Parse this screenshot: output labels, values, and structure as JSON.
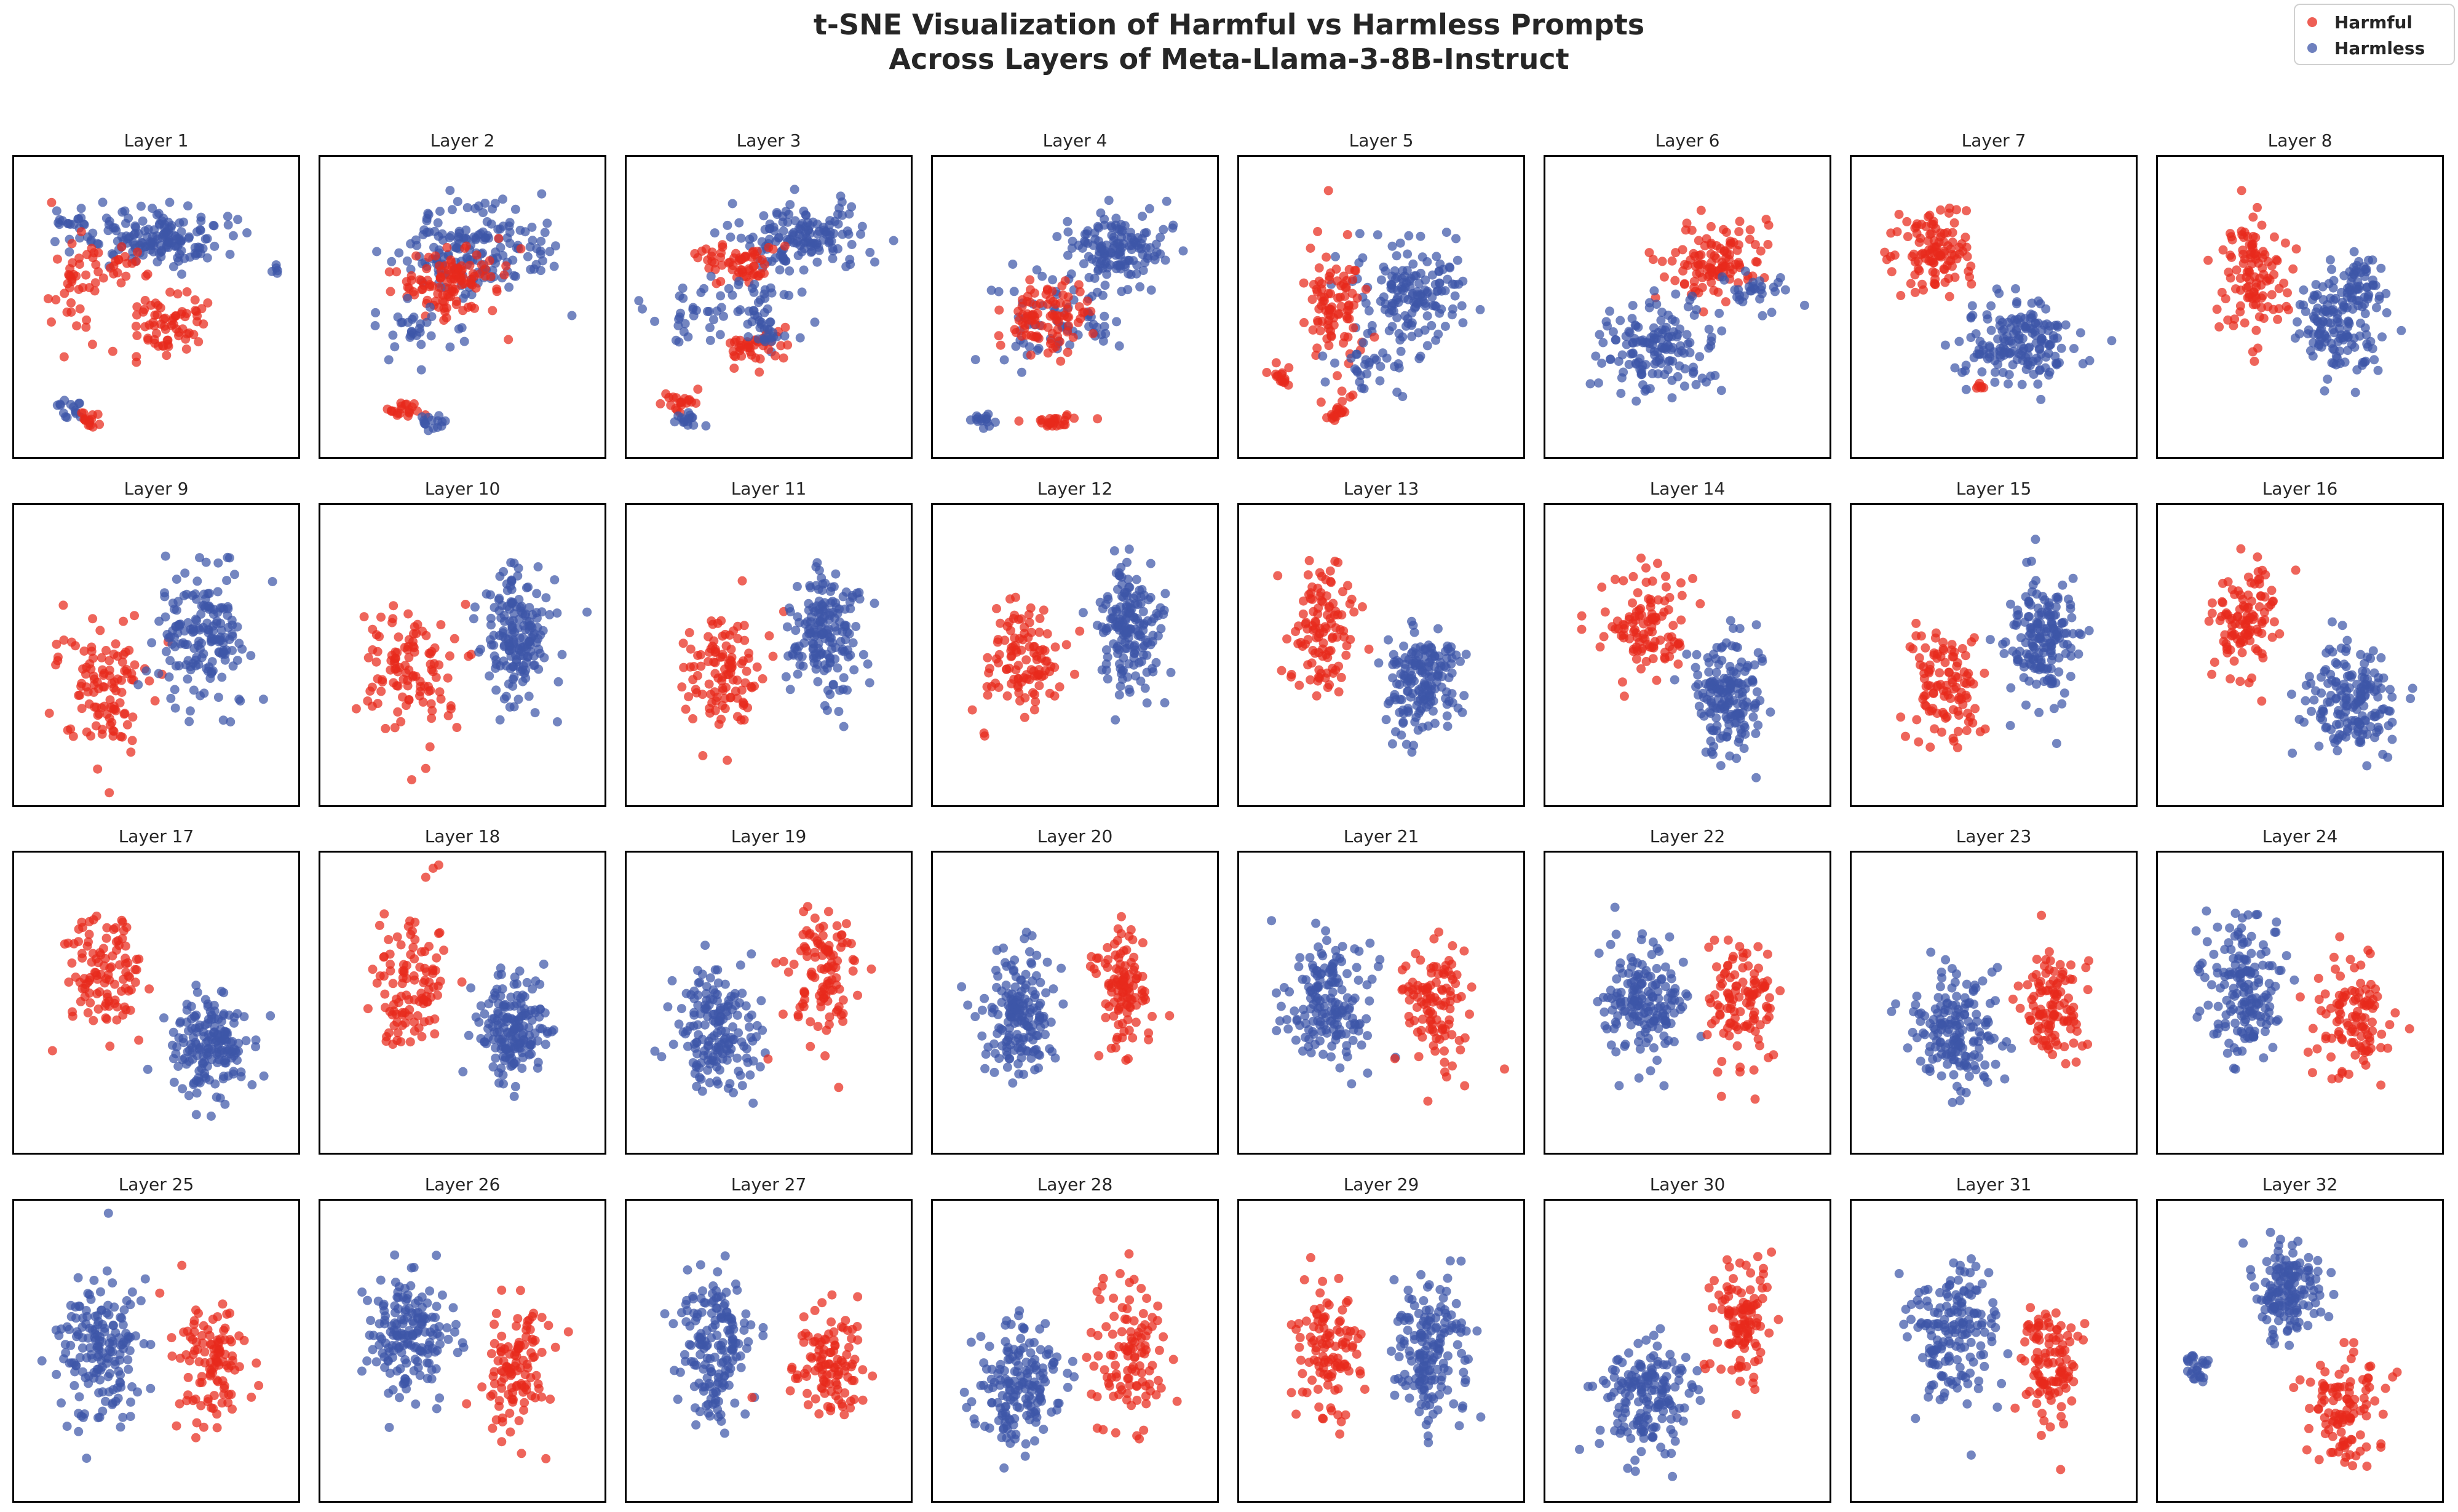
{
  "figure": {
    "title_line1": "t-SNE Visualization of Harmful vs Harmless Prompts",
    "title_line2": "Across Layers of Meta-Llama-3-8B-Instruct"
  },
  "legend": {
    "items": [
      {
        "label": "Harmful",
        "color": "#e8291c",
        "icon": "circle-marker-icon"
      },
      {
        "label": "Harmless",
        "color": "#3d56a8",
        "icon": "circle-marker-icon"
      }
    ]
  },
  "chart_data": {
    "type": "scatter",
    "title": "t-SNE Visualization of Harmful vs Harmless Prompts Across Layers of Meta-Llama-3-8B-Instruct",
    "series": [
      {
        "name": "Harmful",
        "color": "#e8291c"
      },
      {
        "name": "Harmless",
        "color": "#3d56a8"
      }
    ],
    "xlabel": "",
    "ylabel": "",
    "axes_ticks": "none",
    "grid": false,
    "legend_position": "top-right",
    "panels": [
      {
        "title": "Layer 1",
        "clusters": [
          {
            "series": "Harmless",
            "cx": 0.52,
            "cy": 0.25,
            "sx": 0.22,
            "sy": 0.1,
            "n": 150
          },
          {
            "series": "Harmless",
            "cx": 0.18,
            "cy": 0.22,
            "sx": 0.07,
            "sy": 0.06,
            "n": 20
          },
          {
            "series": "Harmful",
            "cx": 0.55,
            "cy": 0.55,
            "sx": 0.13,
            "sy": 0.1,
            "n": 70
          },
          {
            "series": "Harmful",
            "cx": 0.2,
            "cy": 0.4,
            "sx": 0.08,
            "sy": 0.16,
            "n": 40
          },
          {
            "series": "Harmful",
            "cx": 0.38,
            "cy": 0.35,
            "sx": 0.08,
            "sy": 0.06,
            "n": 20
          },
          {
            "series": "Harmless",
            "cx": 0.16,
            "cy": 0.85,
            "sx": 0.05,
            "sy": 0.03,
            "n": 15
          },
          {
            "series": "Harmful",
            "cx": 0.25,
            "cy": 0.9,
            "sx": 0.04,
            "sy": 0.04,
            "n": 15
          },
          {
            "series": "Harmless",
            "cx": 0.94,
            "cy": 0.37,
            "sx": 0.015,
            "sy": 0.015,
            "n": 5
          }
        ]
      },
      {
        "title": "Layer 2",
        "clusters": [
          {
            "series": "Harmless",
            "cx": 0.55,
            "cy": 0.3,
            "sx": 0.26,
            "sy": 0.15,
            "n": 170
          },
          {
            "series": "Harmful",
            "cx": 0.45,
            "cy": 0.42,
            "sx": 0.18,
            "sy": 0.12,
            "n": 110
          },
          {
            "series": "Harmless",
            "cx": 0.3,
            "cy": 0.58,
            "sx": 0.12,
            "sy": 0.08,
            "n": 30
          },
          {
            "series": "Harmful",
            "cx": 0.28,
            "cy": 0.86,
            "sx": 0.07,
            "sy": 0.02,
            "n": 20
          },
          {
            "series": "Harmless",
            "cx": 0.38,
            "cy": 0.9,
            "sx": 0.05,
            "sy": 0.025,
            "n": 15
          }
        ]
      },
      {
        "title": "Layer 3",
        "clusters": [
          {
            "series": "Harmless",
            "cx": 0.62,
            "cy": 0.25,
            "sx": 0.2,
            "sy": 0.1,
            "n": 140
          },
          {
            "series": "Harmful",
            "cx": 0.4,
            "cy": 0.35,
            "sx": 0.12,
            "sy": 0.07,
            "n": 60
          },
          {
            "series": "Harmless",
            "cx": 0.4,
            "cy": 0.52,
            "sx": 0.25,
            "sy": 0.12,
            "n": 70
          },
          {
            "series": "Harmful",
            "cx": 0.45,
            "cy": 0.65,
            "sx": 0.1,
            "sy": 0.05,
            "n": 40
          },
          {
            "series": "Harmless",
            "cx": 0.5,
            "cy": 0.6,
            "sx": 0.08,
            "sy": 0.04,
            "n": 15
          },
          {
            "series": "Harmful",
            "cx": 0.18,
            "cy": 0.83,
            "sx": 0.06,
            "sy": 0.04,
            "n": 20
          },
          {
            "series": "Harmless",
            "cx": 0.2,
            "cy": 0.9,
            "sx": 0.04,
            "sy": 0.03,
            "n": 15
          }
        ]
      },
      {
        "title": "Layer 4",
        "clusters": [
          {
            "series": "Harmless",
            "cx": 0.65,
            "cy": 0.3,
            "sx": 0.16,
            "sy": 0.12,
            "n": 140
          },
          {
            "series": "Harmless",
            "cx": 0.42,
            "cy": 0.55,
            "sx": 0.22,
            "sy": 0.15,
            "n": 70
          },
          {
            "series": "Harmful",
            "cx": 0.4,
            "cy": 0.55,
            "sx": 0.14,
            "sy": 0.12,
            "n": 90
          },
          {
            "series": "Harmful",
            "cx": 0.4,
            "cy": 0.9,
            "sx": 0.1,
            "sy": 0.02,
            "n": 25
          },
          {
            "series": "Harmless",
            "cx": 0.16,
            "cy": 0.9,
            "sx": 0.04,
            "sy": 0.03,
            "n": 15
          }
        ]
      },
      {
        "title": "Layer 5",
        "clusters": [
          {
            "series": "Harmless",
            "cx": 0.62,
            "cy": 0.45,
            "sx": 0.18,
            "sy": 0.2,
            "n": 150
          },
          {
            "series": "Harmful",
            "cx": 0.32,
            "cy": 0.5,
            "sx": 0.1,
            "sy": 0.18,
            "n": 90
          },
          {
            "series": "Harmful",
            "cx": 0.12,
            "cy": 0.75,
            "sx": 0.04,
            "sy": 0.05,
            "n": 15
          },
          {
            "series": "Harmful",
            "cx": 0.35,
            "cy": 0.85,
            "sx": 0.06,
            "sy": 0.05,
            "n": 20
          },
          {
            "series": "Harmless",
            "cx": 0.45,
            "cy": 0.7,
            "sx": 0.15,
            "sy": 0.1,
            "n": 30
          }
        ]
      },
      {
        "title": "Layer 6",
        "clusters": [
          {
            "series": "Harmful",
            "cx": 0.62,
            "cy": 0.35,
            "sx": 0.16,
            "sy": 0.12,
            "n": 110
          },
          {
            "series": "Harmless",
            "cx": 0.38,
            "cy": 0.65,
            "sx": 0.18,
            "sy": 0.14,
            "n": 150
          },
          {
            "series": "Harmless",
            "cx": 0.75,
            "cy": 0.45,
            "sx": 0.1,
            "sy": 0.08,
            "n": 30
          }
        ]
      },
      {
        "title": "Layer 7",
        "clusters": [
          {
            "series": "Harmful",
            "cx": 0.28,
            "cy": 0.3,
            "sx": 0.13,
            "sy": 0.13,
            "n": 110
          },
          {
            "series": "Harmless",
            "cx": 0.6,
            "cy": 0.62,
            "sx": 0.2,
            "sy": 0.13,
            "n": 170
          },
          {
            "series": "Harmful",
            "cx": 0.45,
            "cy": 0.78,
            "sx": 0.02,
            "sy": 0.03,
            "n": 6
          }
        ]
      },
      {
        "title": "Layer 8",
        "clusters": [
          {
            "series": "Harmful",
            "cx": 0.33,
            "cy": 0.4,
            "sx": 0.13,
            "sy": 0.18,
            "n": 110
          },
          {
            "series": "Harmless",
            "cx": 0.65,
            "cy": 0.55,
            "sx": 0.14,
            "sy": 0.17,
            "n": 150
          },
          {
            "series": "Harmless",
            "cx": 0.72,
            "cy": 0.4,
            "sx": 0.1,
            "sy": 0.08,
            "n": 30
          }
        ]
      },
      {
        "title": "Layer 9",
        "clusters": [
          {
            "series": "Harmful",
            "cx": 0.3,
            "cy": 0.6,
            "sx": 0.16,
            "sy": 0.2,
            "n": 110
          },
          {
            "series": "Harmless",
            "cx": 0.67,
            "cy": 0.45,
            "sx": 0.14,
            "sy": 0.2,
            "n": 170
          }
        ]
      },
      {
        "title": "Layer 10",
        "clusters": [
          {
            "series": "Harmful",
            "cx": 0.3,
            "cy": 0.55,
            "sx": 0.15,
            "sy": 0.22,
            "n": 110
          },
          {
            "series": "Harmless",
            "cx": 0.7,
            "cy": 0.42,
            "sx": 0.12,
            "sy": 0.2,
            "n": 170
          }
        ]
      },
      {
        "title": "Layer 11",
        "clusters": [
          {
            "series": "Harmful",
            "cx": 0.33,
            "cy": 0.55,
            "sx": 0.12,
            "sy": 0.2,
            "n": 110
          },
          {
            "series": "Harmless",
            "cx": 0.72,
            "cy": 0.42,
            "sx": 0.12,
            "sy": 0.2,
            "n": 170
          }
        ]
      },
      {
        "title": "Layer 12",
        "clusters": [
          {
            "series": "Harmful",
            "cx": 0.3,
            "cy": 0.55,
            "sx": 0.14,
            "sy": 0.2,
            "n": 110
          },
          {
            "series": "Harmless",
            "cx": 0.7,
            "cy": 0.4,
            "sx": 0.1,
            "sy": 0.2,
            "n": 170
          }
        ]
      },
      {
        "title": "Layer 13",
        "clusters": [
          {
            "series": "Harmful",
            "cx": 0.3,
            "cy": 0.4,
            "sx": 0.12,
            "sy": 0.2,
            "n": 110
          },
          {
            "series": "Harmless",
            "cx": 0.65,
            "cy": 0.6,
            "sx": 0.12,
            "sy": 0.18,
            "n": 170
          }
        ]
      },
      {
        "title": "Layer 14",
        "clusters": [
          {
            "series": "Harmful",
            "cx": 0.35,
            "cy": 0.4,
            "sx": 0.14,
            "sy": 0.18,
            "n": 110
          },
          {
            "series": "Harmless",
            "cx": 0.65,
            "cy": 0.65,
            "sx": 0.12,
            "sy": 0.18,
            "n": 170
          }
        ]
      },
      {
        "title": "Layer 15",
        "clusters": [
          {
            "series": "Harmful",
            "cx": 0.32,
            "cy": 0.6,
            "sx": 0.12,
            "sy": 0.2,
            "n": 110
          },
          {
            "series": "Harmless",
            "cx": 0.68,
            "cy": 0.45,
            "sx": 0.12,
            "sy": 0.18,
            "n": 170
          }
        ]
      },
      {
        "title": "Layer 16",
        "clusters": [
          {
            "series": "Harmful",
            "cx": 0.3,
            "cy": 0.38,
            "sx": 0.12,
            "sy": 0.18,
            "n": 110
          },
          {
            "series": "Harmless",
            "cx": 0.68,
            "cy": 0.65,
            "sx": 0.14,
            "sy": 0.16,
            "n": 170
          }
        ]
      },
      {
        "title": "Layer 17",
        "clusters": [
          {
            "series": "Harmful",
            "cx": 0.3,
            "cy": 0.4,
            "sx": 0.14,
            "sy": 0.2,
            "n": 110
          },
          {
            "series": "Harmless",
            "cx": 0.7,
            "cy": 0.65,
            "sx": 0.14,
            "sy": 0.16,
            "n": 170
          }
        ]
      },
      {
        "title": "Layer 18",
        "clusters": [
          {
            "series": "Harmful",
            "cx": 0.32,
            "cy": 0.45,
            "sx": 0.12,
            "sy": 0.22,
            "n": 110
          },
          {
            "series": "Harmless",
            "cx": 0.68,
            "cy": 0.6,
            "sx": 0.12,
            "sy": 0.18,
            "n": 170
          }
        ]
      },
      {
        "title": "Layer 19",
        "clusters": [
          {
            "series": "Harmless",
            "cx": 0.3,
            "cy": 0.6,
            "sx": 0.14,
            "sy": 0.2,
            "n": 170
          },
          {
            "series": "Harmful",
            "cx": 0.7,
            "cy": 0.4,
            "sx": 0.12,
            "sy": 0.2,
            "n": 110
          }
        ]
      },
      {
        "title": "Layer 20",
        "clusters": [
          {
            "series": "Harmless",
            "cx": 0.3,
            "cy": 0.55,
            "sx": 0.12,
            "sy": 0.2,
            "n": 170
          },
          {
            "series": "Harmful",
            "cx": 0.68,
            "cy": 0.45,
            "sx": 0.1,
            "sy": 0.22,
            "n": 110
          }
        ]
      },
      {
        "title": "Layer 21",
        "clusters": [
          {
            "series": "Harmless",
            "cx": 0.3,
            "cy": 0.5,
            "sx": 0.14,
            "sy": 0.2,
            "n": 170
          },
          {
            "series": "Harmful",
            "cx": 0.68,
            "cy": 0.5,
            "sx": 0.13,
            "sy": 0.2,
            "n": 110
          }
        ]
      },
      {
        "title": "Layer 22",
        "clusters": [
          {
            "series": "Harmless",
            "cx": 0.32,
            "cy": 0.5,
            "sx": 0.14,
            "sy": 0.18,
            "n": 170
          },
          {
            "series": "Harmful",
            "cx": 0.7,
            "cy": 0.5,
            "sx": 0.12,
            "sy": 0.2,
            "n": 110
          }
        ]
      },
      {
        "title": "Layer 23",
        "clusters": [
          {
            "series": "Harmless",
            "cx": 0.35,
            "cy": 0.6,
            "sx": 0.14,
            "sy": 0.18,
            "n": 170
          },
          {
            "series": "Harmful",
            "cx": 0.72,
            "cy": 0.5,
            "sx": 0.1,
            "sy": 0.18,
            "n": 110
          }
        ]
      },
      {
        "title": "Layer 24",
        "clusters": [
          {
            "series": "Harmless",
            "cx": 0.3,
            "cy": 0.45,
            "sx": 0.12,
            "sy": 0.22,
            "n": 170
          },
          {
            "series": "Harmful",
            "cx": 0.7,
            "cy": 0.55,
            "sx": 0.12,
            "sy": 0.2,
            "n": 110
          }
        ]
      },
      {
        "title": "Layer 25",
        "clusters": [
          {
            "series": "Harmless",
            "cx": 0.28,
            "cy": 0.5,
            "sx": 0.13,
            "sy": 0.22,
            "n": 170
          },
          {
            "series": "Harmful",
            "cx": 0.7,
            "cy": 0.55,
            "sx": 0.12,
            "sy": 0.18,
            "n": 110
          }
        ]
      },
      {
        "title": "Layer 26",
        "clusters": [
          {
            "series": "Harmless",
            "cx": 0.3,
            "cy": 0.45,
            "sx": 0.14,
            "sy": 0.18,
            "n": 170
          },
          {
            "series": "Harmful",
            "cx": 0.7,
            "cy": 0.55,
            "sx": 0.12,
            "sy": 0.22,
            "n": 110
          }
        ]
      },
      {
        "title": "Layer 27",
        "clusters": [
          {
            "series": "Harmless",
            "cx": 0.3,
            "cy": 0.5,
            "sx": 0.12,
            "sy": 0.22,
            "n": 170
          },
          {
            "series": "Harmful",
            "cx": 0.72,
            "cy": 0.55,
            "sx": 0.12,
            "sy": 0.18,
            "n": 110
          }
        ]
      },
      {
        "title": "Layer 28",
        "clusters": [
          {
            "series": "Harmless",
            "cx": 0.3,
            "cy": 0.62,
            "sx": 0.14,
            "sy": 0.2,
            "n": 170
          },
          {
            "series": "Harmful",
            "cx": 0.7,
            "cy": 0.5,
            "sx": 0.12,
            "sy": 0.22,
            "n": 110
          }
        ]
      },
      {
        "title": "Layer 29",
        "clusters": [
          {
            "series": "Harmful",
            "cx": 0.3,
            "cy": 0.5,
            "sx": 0.12,
            "sy": 0.22,
            "n": 110
          },
          {
            "series": "Harmless",
            "cx": 0.68,
            "cy": 0.5,
            "sx": 0.12,
            "sy": 0.22,
            "n": 170
          }
        ]
      },
      {
        "title": "Layer 30",
        "clusters": [
          {
            "series": "Harmless",
            "cx": 0.35,
            "cy": 0.65,
            "sx": 0.16,
            "sy": 0.18,
            "n": 170
          },
          {
            "series": "Harmful",
            "cx": 0.7,
            "cy": 0.4,
            "sx": 0.1,
            "sy": 0.2,
            "n": 110
          }
        ]
      },
      {
        "title": "Layer 31",
        "clusters": [
          {
            "series": "Harmless",
            "cx": 0.35,
            "cy": 0.45,
            "sx": 0.14,
            "sy": 0.22,
            "n": 170
          },
          {
            "series": "Harmful",
            "cx": 0.7,
            "cy": 0.55,
            "sx": 0.1,
            "sy": 0.2,
            "n": 110
          }
        ]
      },
      {
        "title": "Layer 32",
        "clusters": [
          {
            "series": "Harmless",
            "cx": 0.45,
            "cy": 0.3,
            "sx": 0.12,
            "sy": 0.14,
            "n": 150
          },
          {
            "series": "Harmless",
            "cx": 0.12,
            "cy": 0.55,
            "sx": 0.04,
            "sy": 0.05,
            "n": 25
          },
          {
            "series": "Harmful",
            "cx": 0.65,
            "cy": 0.7,
            "sx": 0.14,
            "sy": 0.18,
            "n": 110
          }
        ]
      }
    ]
  }
}
